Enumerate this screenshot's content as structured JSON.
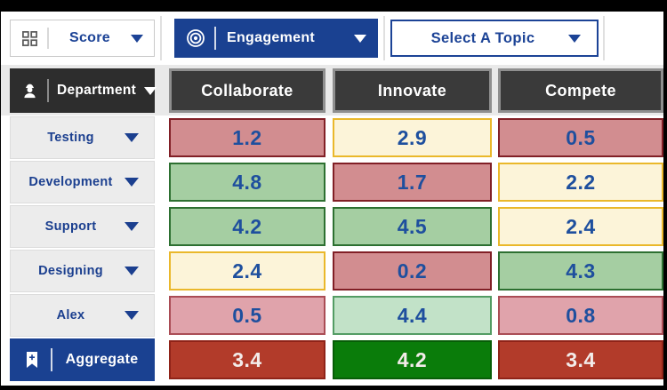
{
  "toolbar": {
    "score": {
      "label": "Score",
      "icon": "grid-icon"
    },
    "metric": {
      "label": "Engagement",
      "icon": "target-icon"
    },
    "topic": {
      "label": "Select A Topic"
    }
  },
  "grid": {
    "row_header_label": "Department",
    "row_header_icon": "worker-icon",
    "columns": [
      {
        "label": "Collaborate"
      },
      {
        "label": "Innovate"
      },
      {
        "label": "Compete"
      }
    ],
    "rows": [
      {
        "label": "Testing",
        "cells": [
          {
            "value": "1.2",
            "level": "low"
          },
          {
            "value": "2.9",
            "level": "mid"
          },
          {
            "value": "0.5",
            "level": "low"
          }
        ]
      },
      {
        "label": "Development",
        "cells": [
          {
            "value": "4.8",
            "level": "high"
          },
          {
            "value": "1.7",
            "level": "low"
          },
          {
            "value": "2.2",
            "level": "mid"
          }
        ]
      },
      {
        "label": "Support",
        "cells": [
          {
            "value": "4.2",
            "level": "high"
          },
          {
            "value": "4.5",
            "level": "high"
          },
          {
            "value": "2.4",
            "level": "mid"
          }
        ]
      },
      {
        "label": "Designing",
        "cells": [
          {
            "value": "2.4",
            "level": "mid"
          },
          {
            "value": "0.2",
            "level": "low"
          },
          {
            "value": "4.3",
            "level": "high"
          }
        ]
      },
      {
        "label": "Alex",
        "cells": [
          {
            "value": "0.5",
            "level": "low-soft"
          },
          {
            "value": "4.4",
            "level": "high-soft"
          },
          {
            "value": "0.8",
            "level": "low-soft"
          }
        ]
      },
      {
        "label": "Aggregate",
        "aggregate": true,
        "icon": "bookmark-plus-icon",
        "cells": [
          {
            "value": "3.4",
            "level": "agg-low"
          },
          {
            "value": "4.2",
            "level": "agg-high"
          },
          {
            "value": "3.4",
            "level": "agg-low"
          }
        ]
      }
    ]
  },
  "colors": {
    "accent_navy": "#1a4191",
    "cell_text": "#1e4f9e",
    "low_bg": "#d28d90",
    "low_border": "#811f26",
    "mid_bg": "#fcf4d9",
    "mid_border": "#eab82b",
    "high_bg": "#a5cea2",
    "high_border": "#2d7031",
    "low_soft_bg": "#e0a3ab",
    "low_soft_border": "#aa4c55",
    "high_soft_bg": "#c2e2c8",
    "high_soft_border": "#539c64",
    "agg_low_bg": "#b23b2a",
    "agg_low_border": "#8f2318",
    "agg_high_bg": "#0a7c0a",
    "agg_high_border": "#075d07"
  }
}
